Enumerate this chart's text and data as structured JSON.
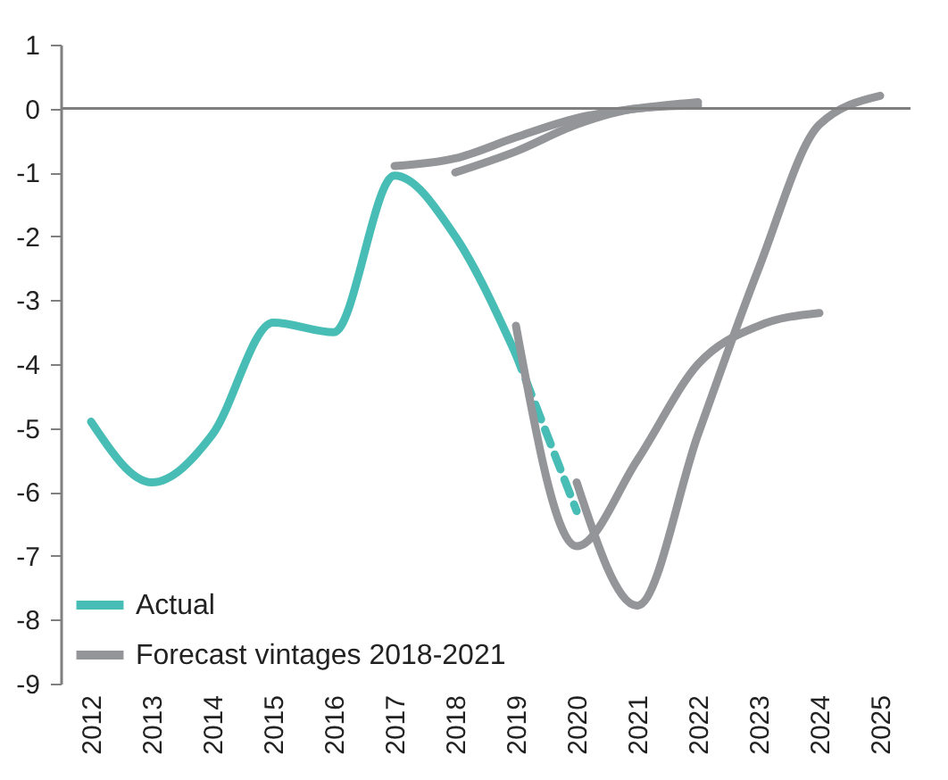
{
  "chart_data": {
    "type": "line",
    "categories": [
      "2012",
      "2013",
      "2014",
      "2015",
      "2016",
      "2017",
      "2018",
      "2019",
      "2020",
      "2021",
      "2022",
      "2023",
      "2024",
      "2025"
    ],
    "series": [
      {
        "name": "Actual",
        "color": "#47bdb5",
        "values": [
          -4.9,
          -5.85,
          -5.1,
          -3.35,
          -3.5,
          -1.05,
          -2.0,
          -3.85,
          null,
          null,
          null,
          null,
          null,
          null
        ]
      },
      {
        "color": "#47bdb5",
        "line_style": "dashed",
        "values": [
          null,
          null,
          null,
          null,
          null,
          null,
          null,
          -3.85,
          -6.3,
          null,
          null,
          null,
          null,
          null
        ]
      },
      {
        "name": "Forecast vintages 2018-2021",
        "color": "#939598",
        "values": [
          null,
          null,
          null,
          null,
          null,
          -0.9,
          -0.78,
          -0.45,
          -0.15,
          0.0,
          0.1,
          null,
          null,
          null
        ]
      },
      {
        "color": "#939598",
        "values": [
          null,
          null,
          null,
          null,
          null,
          null,
          -1.0,
          -0.67,
          -0.25,
          0.0,
          0.05,
          null,
          null,
          null
        ]
      },
      {
        "color": "#939598",
        "values": [
          null,
          null,
          null,
          null,
          null,
          null,
          null,
          -3.4,
          -6.85,
          -5.5,
          -4.0,
          -3.4,
          -3.2,
          null
        ]
      },
      {
        "color": "#939598",
        "values": [
          null,
          null,
          null,
          null,
          null,
          null,
          null,
          null,
          -5.85,
          -7.78,
          -5.1,
          -2.5,
          -0.25,
          0.2
        ]
      }
    ],
    "ylim": [
      -9,
      1
    ],
    "yticks": [
      -9,
      -8,
      -7,
      -6,
      -5,
      -4,
      -3,
      -2,
      -1,
      0,
      1
    ],
    "ref_lines": [
      {
        "axis": "y",
        "value": 0,
        "color": "#7f7f7f"
      }
    ],
    "grid": false,
    "legend": "bottom left",
    "marker": "none"
  }
}
